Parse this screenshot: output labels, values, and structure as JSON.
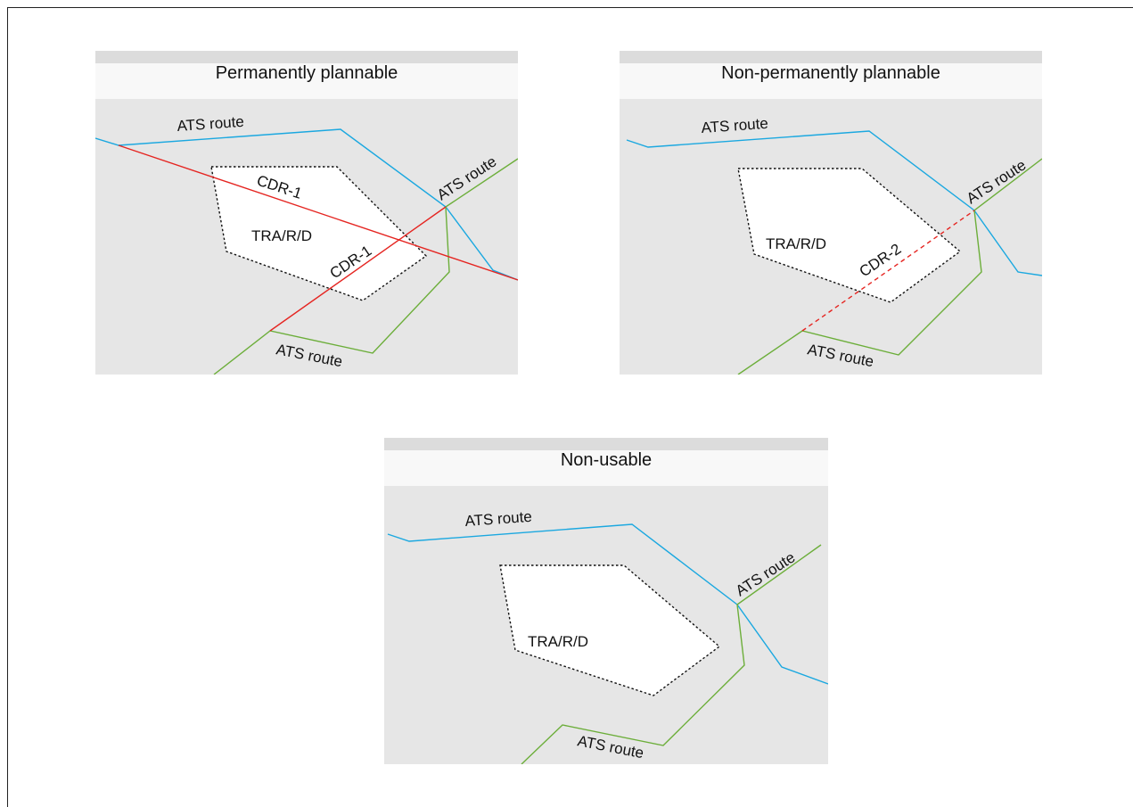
{
  "colors": {
    "panel_bg": "#e6e6e6",
    "header_top": "#dcdcdc",
    "header_bg": "#f8f8f8",
    "area_fill": "#ffffff",
    "ats_blue": "#1ba8e0",
    "ats_green": "#6cae3a",
    "cdr_red": "#e52521"
  },
  "panels": {
    "permanent": {
      "title": "Permanently plannable",
      "area_label": "TRA/R/D",
      "blue_route_label": "ATS route",
      "green_route_upper_label": "ATS route",
      "green_route_lower_label": "ATS route",
      "cdr_a_label": "CDR-1",
      "cdr_b_label": "CDR-1"
    },
    "nonpermanent": {
      "title": "Non-permanently plannable",
      "area_label": "TRA/R/D",
      "blue_route_label": "ATS route",
      "green_route_upper_label": "ATS route",
      "green_route_lower_label": "ATS route",
      "cdr_label": "CDR-2"
    },
    "nonusable": {
      "title": "Non-usable",
      "area_label": "TRA/R/D",
      "blue_route_label": "ATS route",
      "green_route_upper_label": "ATS route",
      "green_route_lower_label": "ATS route"
    }
  }
}
